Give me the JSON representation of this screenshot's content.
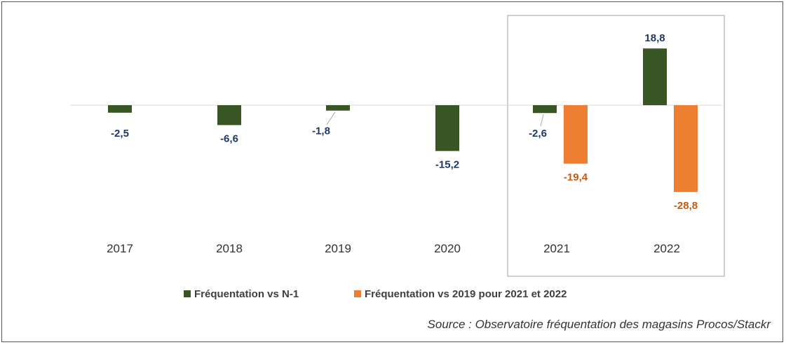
{
  "chart_data": {
    "type": "bar",
    "categories": [
      "2017",
      "2018",
      "2019",
      "2020",
      "2021",
      "2022"
    ],
    "series": [
      {
        "name": "Fréquentation vs N-1",
        "color": "#375623",
        "label_color": "#1F3864",
        "values": [
          -2.5,
          -6.6,
          -1.8,
          -15.2,
          -2.6,
          18.8
        ],
        "labels": [
          "-2,5",
          "-6,6",
          "-1,8",
          "-15,2",
          "-2,6",
          "18,8"
        ]
      },
      {
        "name": "Fréquentation vs 2019 pour 2021 et 2022",
        "color": "#ED7D31",
        "label_color": "#C55A11",
        "values": [
          null,
          null,
          null,
          null,
          -19.4,
          -28.8
        ],
        "labels": [
          "",
          "",
          "",
          "",
          "-19,4",
          "-28,8"
        ]
      }
    ],
    "highlight_categories": [
      "2021",
      "2022"
    ],
    "legend_position": "bottom",
    "grid": false
  },
  "source_note": "Source : Observatoire fréquentation des magasins Procos/Stackr"
}
